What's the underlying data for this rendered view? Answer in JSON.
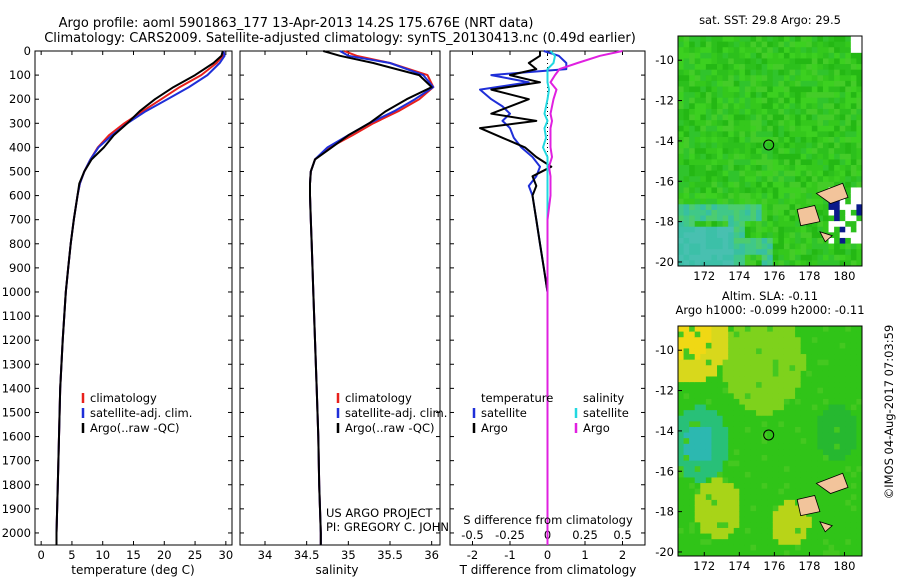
{
  "header": {
    "line1": "Argo profile: aoml 5901863_177 13-Apr-2013 14.2S 175.676E (NRT data)",
    "line2": "Climatology: CARS2009. Satellite-adjusted climatology: synTS_20130413.nc (0.49d earlier)"
  },
  "colors": {
    "climatology": "#e8201c",
    "satellite": "#1f2fd8",
    "argo": "#000000",
    "sat_salinity": "#22d8e0",
    "argo_salinity": "#e020e0",
    "land": "#f2c49b"
  },
  "chart_data": [
    {
      "type": "line",
      "id": "temperature",
      "xlabel": "temperature (deg C)",
      "ylabel": "",
      "xlim": [
        -1,
        31
      ],
      "ylim": [
        2050,
        0
      ],
      "xticks": [
        0,
        5,
        10,
        15,
        20,
        25,
        30
      ],
      "yticks": [
        0,
        100,
        200,
        300,
        400,
        500,
        600,
        700,
        800,
        900,
        1000,
        1100,
        1200,
        1300,
        1400,
        1500,
        1600,
        1700,
        1800,
        1900,
        2000
      ],
      "legend": [
        "climatology",
        "satellite-adj. clim.",
        "Argo(..raw -QC)"
      ],
      "depth": [
        0,
        20,
        50,
        100,
        150,
        200,
        250,
        300,
        350,
        400,
        450,
        500,
        550,
        600,
        700,
        800,
        900,
        1000,
        1200,
        1400,
        1600,
        1800,
        2000,
        2050
      ],
      "series": [
        {
          "name": "climatology",
          "values": [
            29.7,
            29.5,
            28.5,
            26.0,
            22.5,
            19.5,
            16.5,
            13.5,
            11.0,
            9.2,
            8.0,
            7.0,
            6.3,
            5.9,
            5.3,
            4.8,
            4.4,
            4.0,
            3.5,
            3.1,
            2.9,
            2.7,
            2.5,
            2.5
          ]
        },
        {
          "name": "satellite-adj. clim.",
          "values": [
            29.6,
            29.8,
            29.0,
            27.0,
            24.0,
            20.5,
            17.0,
            14.0,
            11.5,
            9.3,
            8.0,
            7.0,
            6.3,
            5.9,
            5.3,
            4.8,
            4.4,
            4.0,
            3.5,
            3.1,
            2.9,
            2.7,
            2.5,
            2.5
          ]
        },
        {
          "name": "Argo(..raw -QC)",
          "values": [
            29.5,
            29.3,
            28.0,
            25.0,
            21.5,
            18.5,
            16.0,
            14.0,
            11.8,
            10.2,
            8.2,
            7.0,
            6.2,
            5.9,
            5.3,
            4.8,
            4.4,
            4.0,
            3.5,
            3.1,
            2.9,
            2.7,
            2.5,
            2.5
          ]
        }
      ]
    },
    {
      "type": "line",
      "id": "salinity",
      "xlabel": "salinity",
      "xlim": [
        33.7,
        36.1
      ],
      "ylim": [
        2050,
        0
      ],
      "xticks": [
        34,
        34.5,
        35,
        35.5,
        36
      ],
      "xticklabels": [
        "34",
        "34.5",
        "35",
        "35.5",
        "36"
      ],
      "legend": [
        "climatology",
        "satellite-adj. clim.",
        "Argo(..raw -QC)"
      ],
      "depth": [
        0,
        20,
        50,
        100,
        150,
        200,
        250,
        300,
        350,
        400,
        450,
        500,
        550,
        600,
        700,
        800,
        900,
        1000,
        1200,
        1400,
        1600,
        1800,
        2000,
        2050
      ],
      "series": [
        {
          "name": "climatology",
          "values": [
            34.95,
            35.1,
            35.5,
            35.95,
            36.02,
            35.85,
            35.6,
            35.3,
            35.05,
            34.78,
            34.6,
            34.55,
            34.54,
            34.54,
            34.55,
            34.56,
            34.57,
            34.58,
            34.6,
            34.62,
            34.64,
            34.65,
            34.67,
            34.67
          ]
        },
        {
          "name": "satellite-adj. clim.",
          "values": [
            34.9,
            35.0,
            35.5,
            35.9,
            36.02,
            35.8,
            35.55,
            35.25,
            35.0,
            34.75,
            34.6,
            34.55,
            34.54,
            34.54,
            34.55,
            34.56,
            34.57,
            34.58,
            34.6,
            34.62,
            34.64,
            34.65,
            34.67,
            34.67
          ]
        },
        {
          "name": "Argo(..raw -QC)",
          "values": [
            34.7,
            34.9,
            35.3,
            35.85,
            36.0,
            35.7,
            35.45,
            35.25,
            35.0,
            34.8,
            34.6,
            34.55,
            34.54,
            34.54,
            34.55,
            34.56,
            34.57,
            34.58,
            34.6,
            34.62,
            34.64,
            34.65,
            34.67,
            34.67
          ]
        }
      ],
      "annotation_line1": "US ARGO PROJECT",
      "annotation_line2": "PI: GREGORY C. JOHNSON"
    },
    {
      "type": "line",
      "id": "difference",
      "xlabel": "T difference from climatology",
      "xlabel_top": "S difference from climatology",
      "xlim": [
        -2.6,
        2.6
      ],
      "ylim": [
        2050,
        0
      ],
      "xticks": [
        -2,
        -1,
        0,
        1,
        2
      ],
      "xticks_s": [
        -0.5,
        -0.25,
        0,
        0.25,
        0.5
      ],
      "xticklabels_s": [
        "-0.5",
        "-0.25",
        "0",
        "0.25",
        "0.5"
      ],
      "s_scale": 4,
      "legend_t_title": "temperature",
      "legend_s_title": "salinity",
      "legend_t": [
        "satellite",
        "Argo"
      ],
      "legend_s": [
        "satellite",
        "Argo"
      ],
      "depth": [
        0,
        20,
        50,
        75,
        100,
        130,
        160,
        200,
        230,
        260,
        290,
        320,
        360,
        400,
        440,
        480,
        520,
        560,
        600,
        700,
        800,
        900,
        1000,
        1200,
        1400,
        1600,
        1800,
        2000,
        2050
      ],
      "series": [
        {
          "name": "T satellite",
          "values": [
            -0.1,
            0.3,
            0.5,
            0.5,
            -1.5,
            -0.5,
            -1.8,
            -1.5,
            -1.2,
            -1.0,
            -1.2,
            -1.0,
            -0.9,
            -0.7,
            -0.4,
            -0.2,
            -0.3,
            -0.5,
            -0.4,
            -0.3,
            -0.2,
            -0.1,
            0.0,
            0.0,
            0.0,
            0.0,
            0.0,
            0.0,
            0.0
          ]
        },
        {
          "name": "T Argo",
          "values": [
            -0.2,
            -0.2,
            -0.5,
            -0.3,
            -1.0,
            -0.2,
            -1.5,
            -0.5,
            -1.0,
            -1.5,
            -0.3,
            -1.8,
            -1.2,
            -0.6,
            -0.3,
            0.1,
            -0.4,
            -0.3,
            -0.4,
            -0.3,
            -0.2,
            -0.1,
            0.0,
            0.0,
            0.0,
            0.0,
            0.0,
            0.0,
            0.0
          ]
        },
        {
          "name": "S satellite",
          "values": [
            0.02,
            0.05,
            0.04,
            0.0,
            0.0,
            0.0,
            0.01,
            0.0,
            -0.01,
            -0.02,
            0.0,
            -0.02,
            -0.01,
            -0.03,
            0.0,
            0.0,
            0.0,
            0.0,
            0.0,
            0.0,
            0.0,
            0.0,
            0.0,
            0.0,
            0.0,
            0.0,
            0.0,
            0.0,
            0.0
          ]
        },
        {
          "name": "S Argo",
          "values": [
            0.5,
            0.35,
            0.2,
            0.08,
            0.05,
            0.02,
            0.06,
            0.04,
            0.03,
            0.02,
            0.03,
            0.02,
            0.02,
            0.02,
            0.03,
            0.01,
            0.02,
            0.02,
            0.02,
            0.0,
            0.0,
            0.0,
            0.0,
            0.0,
            0.0,
            0.0,
            0.0,
            0.0,
            0.0
          ]
        }
      ]
    },
    {
      "type": "heatmap",
      "id": "sst-map",
      "title": "sat. SST: 29.8  Argo: 29.5",
      "xlim": [
        170.5,
        181
      ],
      "ylim": [
        -20.2,
        -8.8
      ],
      "xticks": [
        172,
        174,
        176,
        178,
        180
      ],
      "yticks": [
        -10,
        -12,
        -14,
        -16,
        -18,
        -20
      ],
      "yticklabels": [
        "-10",
        "-12",
        "-14",
        "-16",
        "-18",
        "-20"
      ],
      "profile_location": [
        175.676,
        -14.2
      ]
    },
    {
      "type": "heatmap",
      "id": "sla-map",
      "title_line1": "Altim. SLA: -0.11",
      "title_line2": "Argo h1000: -0.099 h2000: -0.11",
      "xlim": [
        170.5,
        181
      ],
      "ylim": [
        -20.2,
        -8.8
      ],
      "xticks": [
        172,
        174,
        176,
        178,
        180
      ],
      "yticks": [
        -10,
        -12,
        -14,
        -16,
        -18,
        -20
      ],
      "yticklabels": [
        "-10",
        "-12",
        "-14",
        "-16",
        "-18",
        "-20"
      ],
      "profile_location": [
        175.676,
        -14.2
      ]
    }
  ],
  "footer": {
    "credit": "©IMOS 04-Aug-2017 07:03:59"
  }
}
